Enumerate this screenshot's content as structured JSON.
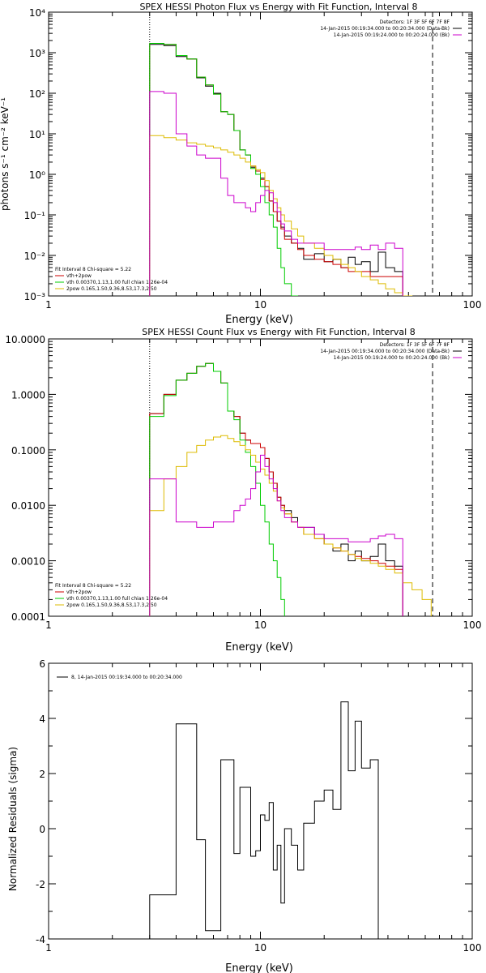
{
  "colors": {
    "total": "#000000",
    "vth_2pow": "#cc0000",
    "vth": "#00cc00",
    "two_pow": "#ddbb00",
    "bk": "#cc00cc"
  },
  "energy_edges": [
    3,
    3.5,
    4,
    4.5,
    5,
    5.5,
    6,
    6.5,
    7,
    7.5,
    8,
    8.5,
    9,
    9.5,
    10,
    10.5,
    11,
    11.5,
    12,
    12.5,
    13,
    14,
    15,
    16,
    18,
    20,
    22,
    24,
    26,
    28,
    30,
    33,
    36,
    39,
    43,
    47,
    52,
    58,
    64,
    70,
    80,
    90,
    100
  ],
  "chart_data": [
    {
      "type": "line",
      "title": "SPEX HESSI Photon Flux vs Energy with Fit Function, Interval 8",
      "xlabel": "Energy (keV)",
      "ylabel": "photons s⁻¹ cm⁻² keV⁻¹",
      "xscale": "log",
      "yscale": "log",
      "xlim": [
        1,
        100
      ],
      "ylim": [
        0.001,
        10000
      ],
      "xticks": [
        "1",
        "10",
        "100"
      ],
      "yticks": [
        "10⁻³",
        "10⁻²",
        "10⁻¹",
        "10⁰",
        "10¹",
        "10²",
        "10³",
        "10⁴"
      ],
      "vlines": [
        {
          "x": 3,
          "style": "dotted"
        },
        {
          "x": 65,
          "style": "dashed"
        }
      ],
      "legend_top": [
        "Detectors: 1F 3F 5F 6F 7F 8F",
        "14-Jan-2015 00:19:34.000 to 00:20:34.000 (Data-Bk)",
        "14-Jan-2015 00:19:24.000 to 00:20:24.000 (Bk)"
      ],
      "legend_bottom": [
        "Fit Interval 8   Chi-square = 5.22",
        "vth+2pow",
        "vth 0.00370,1.13,1.00  full chian 1.26e-04",
        "2pow 0.165,1.50,9.36,8.53,17.3,2.50"
      ],
      "series": [
        {
          "color_key": "total",
          "values": [
            1600,
            1500,
            800,
            700,
            240,
            150,
            100,
            35,
            30,
            12,
            4,
            3,
            1.5,
            1.2,
            0.8,
            0.5,
            0.22,
            0.12,
            0.07,
            0.05,
            0.03,
            0.02,
            0.015,
            0.008,
            0.011,
            0.007,
            0.008,
            0.005,
            0.009,
            0.006,
            0.007,
            0.004,
            0.012,
            0.005,
            0.004
          ]
        },
        {
          "color_key": "vth_2pow",
          "values": [
            1700,
            1600,
            850,
            700,
            250,
            160,
            95,
            35,
            30,
            12,
            4,
            3,
            1.6,
            1.2,
            0.75,
            0.5,
            0.22,
            0.12,
            0.07,
            0.045,
            0.025,
            0.02,
            0.014,
            0.01,
            0.008,
            0.007,
            0.006,
            0.005,
            0.004,
            0.004,
            0.004,
            0.003,
            0.003,
            0.003,
            0.003
          ]
        },
        {
          "color_key": "vth",
          "values": [
            1700,
            1600,
            850,
            700,
            250,
            160,
            95,
            35,
            30,
            12,
            4,
            3,
            1.4,
            1,
            0.5,
            0.2,
            0.1,
            0.05,
            0.015,
            0.005,
            0.002,
            0.001,
            0.0005
          ]
        },
        {
          "color_key": "two_pow",
          "values": [
            9,
            8,
            7,
            6,
            5.5,
            5,
            4.5,
            4,
            3.5,
            3,
            2.5,
            2,
            1.6,
            1.3,
            1.1,
            0.7,
            0.4,
            0.25,
            0.15,
            0.1,
            0.07,
            0.045,
            0.03,
            0.02,
            0.015,
            0.01,
            0.008,
            0.006,
            0.005,
            0.004,
            0.003,
            0.0025,
            0.002,
            0.0015,
            0.0012,
            0.001,
            0.0008
          ]
        },
        {
          "color_key": "bk",
          "values": [
            110,
            100,
            10,
            5,
            3,
            2.5,
            2.5,
            0.8,
            0.3,
            0.2,
            0.2,
            0.15,
            0.12,
            0.2,
            0.3,
            0.4,
            0.35,
            0.2,
            0.12,
            0.06,
            0.04,
            0.025,
            0.02,
            0.02,
            0.02,
            0.014,
            0.014,
            0.014,
            0.014,
            0.016,
            0.014,
            0.018,
            0.014,
            0.02,
            0.015
          ]
        }
      ]
    },
    {
      "type": "line",
      "title": "SPEX HESSI Count Flux vs Energy with Fit Function, Interval 8",
      "xlabel": "Energy (keV)",
      "ylabel": "",
      "xscale": "log",
      "yscale": "log",
      "xlim": [
        1,
        100
      ],
      "ylim": [
        0.0001,
        10
      ],
      "xticks": [
        "1",
        "10",
        "100"
      ],
      "yticks": [
        "0.0001",
        "0.0010",
        "0.0100",
        "0.1000",
        "1.0000",
        "10.0000"
      ],
      "vlines": [
        {
          "x": 3,
          "style": "dotted"
        },
        {
          "x": 65,
          "style": "dashed"
        }
      ],
      "legend_top": [
        "Detectors: 1F 3F 5F 6F 7F 8F",
        "14-Jan-2015 00:19:34.000 to 00:20:34.000 (Data-Bk)",
        "14-Jan-2015 00:19:24.000 to 00:20:24.000 (Bk)"
      ],
      "legend_bottom": [
        "Fit Interval 8   Chi-square = 5.22",
        "vth+2pow",
        "vth 0.00370,1.13,1.00  full chian 1.26e-04",
        "2pow 0.165,1.50,9.36,8.53,17.3,2.50"
      ],
      "series": [
        {
          "color_key": "total",
          "values": [
            0.45,
            1,
            1.8,
            2.4,
            3.2,
            3.6,
            2.6,
            1.6,
            0.5,
            0.4,
            0.2,
            0.15,
            0.13,
            0.13,
            0.11,
            0.07,
            0.04,
            0.025,
            0.014,
            0.01,
            0.008,
            0.006,
            0.004,
            0.004,
            0.003,
            0.002,
            0.0015,
            0.002,
            0.001,
            0.0015,
            0.001,
            0.0012,
            0.002,
            0.001,
            0.0008
          ]
        },
        {
          "color_key": "vth_2pow",
          "values": [
            0.45,
            1,
            1.8,
            2.4,
            3.2,
            3.6,
            2.6,
            1.6,
            0.5,
            0.4,
            0.2,
            0.15,
            0.13,
            0.13,
            0.11,
            0.07,
            0.04,
            0.025,
            0.014,
            0.01,
            0.007,
            0.005,
            0.004,
            0.003,
            0.0025,
            0.002,
            0.0017,
            0.0015,
            0.0013,
            0.0012,
            0.0011,
            0.001,
            0.0009,
            0.0008,
            0.0007
          ]
        },
        {
          "color_key": "vth",
          "values": [
            0.4,
            0.95,
            1.8,
            2.4,
            3.2,
            3.6,
            2.6,
            1.6,
            0.5,
            0.35,
            0.15,
            0.09,
            0.05,
            0.025,
            0.01,
            0.005,
            0.002,
            0.001,
            0.0005,
            0.0002
          ]
        },
        {
          "color_key": "two_pow",
          "values": [
            0.008,
            0.03,
            0.05,
            0.09,
            0.12,
            0.15,
            0.17,
            0.18,
            0.16,
            0.14,
            0.12,
            0.1,
            0.08,
            0.06,
            0.045,
            0.035,
            0.025,
            0.018,
            0.012,
            0.009,
            0.007,
            0.005,
            0.004,
            0.003,
            0.0025,
            0.002,
            0.0017,
            0.0015,
            0.0013,
            0.0011,
            0.001,
            0.0009,
            0.0008,
            0.0007,
            0.0006,
            0.0004,
            0.0003,
            0.0002
          ]
        },
        {
          "color_key": "bk",
          "values": [
            0.03,
            0.03,
            0.005,
            0.005,
            0.004,
            0.004,
            0.005,
            0.005,
            0.005,
            0.008,
            0.01,
            0.013,
            0.02,
            0.04,
            0.08,
            0.05,
            0.03,
            0.02,
            0.012,
            0.008,
            0.006,
            0.005,
            0.004,
            0.004,
            0.003,
            0.0025,
            0.0025,
            0.0025,
            0.0022,
            0.0022,
            0.0022,
            0.0025,
            0.0028,
            0.003,
            0.0025
          ]
        }
      ]
    },
    {
      "type": "line",
      "title": "",
      "xlabel": "Energy (keV)",
      "ylabel": "Normalized Residuals (sigma)",
      "xscale": "log",
      "yscale": "linear",
      "xlim": [
        1,
        100
      ],
      "ylim": [
        -4,
        6
      ],
      "xticks": [
        "1",
        "10",
        "100"
      ],
      "yticks": [
        "-4",
        "-2",
        "0",
        "2",
        "4",
        "6"
      ],
      "legend": [
        "8, 14-Jan-2015 00:19:34.000 to 00:20:34.000"
      ],
      "series": [
        {
          "color_key": "total",
          "values": [
            -2.4,
            -2.4,
            3.8,
            3.8,
            -0.4,
            -3.7,
            -3.7,
            2.5,
            2.5,
            -0.9,
            1.5,
            1.5,
            -1,
            -0.8,
            0.5,
            0.3,
            0.95,
            -1.5,
            -0.6,
            -2.7,
            0,
            -0.6,
            -1.5,
            0.2,
            1,
            1.4,
            0.7,
            4.6,
            2.1,
            3.9,
            2.2,
            2.5
          ]
        }
      ]
    }
  ]
}
